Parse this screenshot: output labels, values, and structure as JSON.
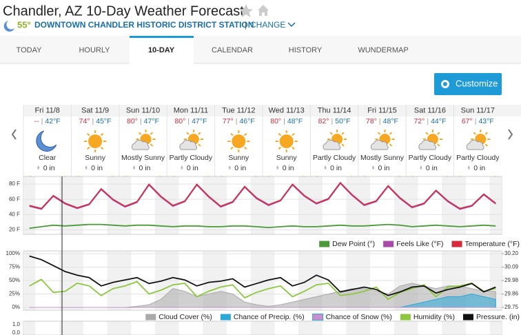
{
  "header": {
    "title": "Chandler, AZ 10-Day Weather Forecast",
    "current_temp": "55°",
    "station": "DOWNTOWN CHANDLER HISTORIC DISTRICT STATION",
    "separator": "|",
    "change": "CHANGE"
  },
  "tabs": [
    "TODAY",
    "HOURLY",
    "10-DAY",
    "CALENDAR",
    "HISTORY",
    "WUNDERMAP"
  ],
  "active_tab": 2,
  "customize": "Customize",
  "temp_separator": "|",
  "days": [
    {
      "date": "Fri 11/8",
      "high": "--",
      "low": "42°F",
      "condition": "Clear",
      "precip": "0 in"
    },
    {
      "date": "Sat 11/9",
      "high": "74°",
      "low": "45°F",
      "condition": "Sunny",
      "precip": "0 in"
    },
    {
      "date": "Sun 11/10",
      "high": "80°",
      "low": "47°F",
      "condition": "Mostly Sunny",
      "precip": "0 in"
    },
    {
      "date": "Mon 11/11",
      "high": "80°",
      "low": "47°F",
      "condition": "Partly Cloudy",
      "precip": "0 in"
    },
    {
      "date": "Tue 11/12",
      "high": "77°",
      "low": "46°F",
      "condition": "Sunny",
      "precip": "0 in"
    },
    {
      "date": "Wed 11/13",
      "high": "80°",
      "low": "48°F",
      "condition": "Sunny",
      "precip": "0 in"
    },
    {
      "date": "Thu 11/14",
      "high": "82°",
      "low": "50°F",
      "condition": "Partly Cloudy",
      "precip": "0 in"
    },
    {
      "date": "Fri 11/15",
      "high": "78°",
      "low": "48°F",
      "condition": "Mostly Sunny",
      "precip": "0 in"
    },
    {
      "date": "Sat 11/16",
      "high": "72°",
      "low": "44°F",
      "condition": "Partly Cloudy",
      "precip": "0 in"
    },
    {
      "date": "Sun 11/17",
      "high": "67°",
      "low": "43°F",
      "condition": "Partly Cloudy",
      "precip": "0 in"
    }
  ],
  "chart_data": [
    {
      "type": "line",
      "x": [
        3,
        9,
        15,
        21,
        27,
        33,
        39,
        45,
        51,
        57,
        63,
        69,
        75,
        81,
        87,
        93,
        99,
        105,
        111,
        117,
        123,
        129,
        135,
        141,
        147,
        153,
        159,
        165,
        171,
        177,
        183,
        189,
        195,
        201,
        207,
        213,
        219,
        225,
        231,
        237
      ],
      "xlim": [
        0,
        240
      ],
      "ylim": [
        14,
        90
      ],
      "yticks": [
        {
          "value": 80,
          "label": "80 F"
        },
        {
          "value": 60,
          "label": "60 F"
        },
        {
          "value": 40,
          "label": "40 F"
        },
        {
          "value": 20,
          "label": "20 F"
        }
      ],
      "grid": true,
      "series": [
        {
          "name": "Dew Point (°)",
          "color": "#4a9a3a",
          "values": [
            22,
            24,
            26,
            25,
            26,
            27,
            27,
            26,
            25,
            26,
            26,
            25,
            24,
            25,
            25,
            24,
            24,
            25,
            25,
            24,
            23,
            24,
            25,
            24,
            24,
            25,
            26,
            25,
            25,
            26,
            27,
            26,
            24,
            25,
            26,
            25,
            24,
            25,
            26,
            25
          ]
        },
        {
          "name": "Feels Like (°F)",
          "color": "#a64ca6",
          "values": [
            51,
            47,
            64,
            54,
            48,
            53,
            73,
            59,
            50,
            56,
            79,
            63,
            51,
            57,
            79,
            63,
            50,
            56,
            76,
            61,
            52,
            58,
            79,
            64,
            54,
            60,
            81,
            65,
            52,
            57,
            77,
            61,
            49,
            54,
            71,
            57,
            47,
            51,
            66,
            54
          ]
        },
        {
          "name": "Temperature (°F)",
          "color": "#d62b3a",
          "values": [
            52,
            48,
            65,
            55,
            49,
            54,
            74,
            60,
            51,
            57,
            80,
            64,
            52,
            58,
            80,
            64,
            51,
            57,
            77,
            62,
            53,
            59,
            80,
            65,
            55,
            61,
            82,
            66,
            53,
            58,
            78,
            62,
            50,
            55,
            72,
            58,
            48,
            52,
            67,
            55
          ]
        }
      ]
    },
    {
      "type": "combo",
      "x": [
        3,
        9,
        15,
        21,
        27,
        33,
        39,
        45,
        51,
        57,
        63,
        69,
        75,
        81,
        87,
        93,
        99,
        105,
        111,
        117,
        123,
        129,
        135,
        141,
        147,
        153,
        159,
        165,
        171,
        177,
        183,
        189,
        195,
        201,
        207,
        213,
        219,
        225,
        231,
        237
      ],
      "xlim": [
        0,
        240
      ],
      "ylim": [
        0,
        100
      ],
      "yticks": [
        {
          "value": 100,
          "label": "100%"
        },
        {
          "value": 75,
          "label": "75%"
        },
        {
          "value": 50,
          "label": "50%"
        },
        {
          "value": 25,
          "label": "25%"
        },
        {
          "value": 0,
          "label": "0%"
        }
      ],
      "y2lim": [
        29.75,
        30.2
      ],
      "y2ticks": [
        {
          "value": 30.2,
          "label": "30.20"
        },
        {
          "value": 30.0875,
          "label": "30.09"
        },
        {
          "value": 29.975,
          "label": "29.98"
        },
        {
          "value": 29.8625,
          "label": "29.86"
        },
        {
          "value": 29.75,
          "label": "29.75"
        }
      ],
      "grid": true,
      "series": [
        {
          "name": "Cloud Cover (%)",
          "kind": "area",
          "color": "#aaaaaa",
          "values": [
            0,
            0,
            0,
            0,
            0,
            0,
            0,
            0,
            0,
            2,
            5,
            15,
            35,
            30,
            20,
            25,
            30,
            25,
            10,
            5,
            2,
            5,
            10,
            15,
            20,
            25,
            30,
            35,
            35,
            30,
            25,
            40,
            45,
            40,
            35,
            40,
            40,
            35,
            30,
            30
          ]
        },
        {
          "name": "Chance of Precip. (%)",
          "kind": "area",
          "color": "#2aa8d8",
          "values": [
            0,
            0,
            0,
            0,
            0,
            0,
            0,
            0,
            0,
            0,
            0,
            0,
            0,
            0,
            0,
            0,
            0,
            0,
            0,
            0,
            0,
            0,
            0,
            0,
            0,
            0,
            0,
            0,
            0,
            0,
            0,
            0,
            5,
            10,
            15,
            20,
            20,
            25,
            20,
            15
          ]
        },
        {
          "name": "Chance of Snow (%)",
          "kind": "area",
          "color": "#c58fd0",
          "values": [
            0,
            0,
            0,
            0,
            0,
            0,
            0,
            0,
            0,
            0,
            0,
            0,
            0,
            0,
            0,
            0,
            0,
            0,
            0,
            0,
            0,
            0,
            0,
            0,
            0,
            0,
            0,
            0,
            0,
            0,
            0,
            0,
            0,
            0,
            0,
            0,
            0,
            0,
            0,
            0
          ]
        },
        {
          "name": "Humidity (%)",
          "kind": "line",
          "color": "#8dc63f",
          "values": [
            40,
            52,
            28,
            30,
            45,
            40,
            22,
            35,
            40,
            48,
            25,
            32,
            42,
            45,
            20,
            30,
            38,
            42,
            18,
            28,
            35,
            40,
            20,
            30,
            42,
            45,
            22,
            25,
            30,
            38,
            15,
            28,
            35,
            42,
            20,
            38,
            40,
            45,
            30,
            35
          ]
        },
        {
          "name": "Pressure. (in)",
          "kind": "line",
          "axis": "y2",
          "color": "#111111",
          "values": [
            30.18,
            30.15,
            30.1,
            30.05,
            30.02,
            30.0,
            29.93,
            29.96,
            29.98,
            30.0,
            29.95,
            29.97,
            30.0,
            29.98,
            29.93,
            29.96,
            29.97,
            29.99,
            29.92,
            29.95,
            29.98,
            30.0,
            29.93,
            29.96,
            30.02,
            29.98,
            29.88,
            29.9,
            29.92,
            29.9,
            29.85,
            29.88,
            29.92,
            29.93,
            29.87,
            29.9,
            29.92,
            29.95,
            29.88,
            29.92
          ]
        }
      ]
    },
    {
      "type": "empty",
      "ylim": [
        0,
        1
      ],
      "yticks": [
        {
          "value": 1,
          "label": "1.0"
        },
        {
          "value": 0,
          "label": "0.0"
        }
      ]
    }
  ]
}
